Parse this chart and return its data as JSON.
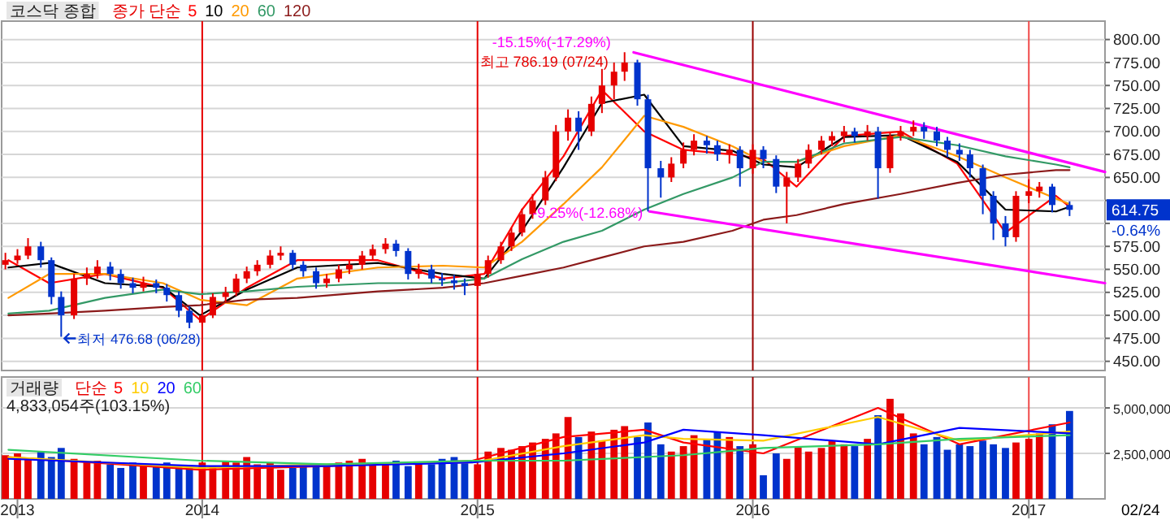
{
  "chart_data": [
    {
      "type": "candlestick",
      "title": "코스닥 종합",
      "legend_title": "종가 단순",
      "legend": "top left",
      "grid": "y",
      "tick_labels": "y",
      "xlim": [
        "2013-04-10",
        "2017-04-12"
      ],
      "ylim": [
        440,
        820
      ],
      "yticks": [
        {
          "value": 450,
          "label": "450.00"
        },
        {
          "value": 475,
          "label": "475.00"
        },
        {
          "value": 500,
          "label": "500.00"
        },
        {
          "value": 525,
          "label": "525.00"
        },
        {
          "value": 550,
          "label": "550.00"
        },
        {
          "value": 575,
          "label": "575.00"
        },
        {
          "value": 600,
          "label": null
        },
        {
          "value": 625,
          "label": null
        },
        {
          "value": 650,
          "label": "650.00"
        },
        {
          "value": 675,
          "label": "675.00"
        },
        {
          "value": 700,
          "label": "700.00"
        },
        {
          "value": 725,
          "label": "725.00"
        },
        {
          "value": 750,
          "label": "750.00"
        },
        {
          "value": 775,
          "label": "775.00"
        },
        {
          "value": 800,
          "label": "800.00"
        }
      ],
      "ref_lines": [
        {
          "axis": "x",
          "value": "2014-01-01",
          "color": "#e60000"
        },
        {
          "axis": "x",
          "value": "2015-01-01",
          "color": "#e60000"
        },
        {
          "axis": "x",
          "value": "2016-01-01",
          "color": "#990000"
        },
        {
          "axis": "x",
          "value": "2017-01-01",
          "color": "#f04848"
        }
      ],
      "annotations": [
        {
          "text": "최고 786.19 (07/24)",
          "x": "2015-07-15",
          "y": 786.19
        },
        {
          "text": "최저 476.68 (06/28)",
          "x": "2013-06-28",
          "y": 476.68
        },
        {
          "text": "-15.15%(-17.29%)",
          "x": "2015-07-27",
          "y": 786
        },
        {
          "text": "-9.25%(-12.68%)",
          "x": "2015-08-17",
          "y": 613
        },
        {
          "text": "614.75",
          "y": 614.75
        },
        "-0.64%"
      ],
      "series": [
        {
          "x": [
            "2013-04-15",
            "2013-05-01",
            "2013-05-15",
            "2013-06-01",
            "2013-06-15",
            "2013-06-28",
            "2013-07-15",
            "2013-08-01",
            "2013-08-15",
            "2013-09-01",
            "2013-09-15",
            "2013-10-01",
            "2013-10-15",
            "2013-11-01",
            "2013-11-15",
            "2013-12-01",
            "2013-12-15",
            "2014-01-01",
            "2014-01-15",
            "2014-02-01",
            "2014-02-15",
            "2014-03-01",
            "2014-03-15",
            "2014-04-01",
            "2014-04-15",
            "2014-05-01",
            "2014-05-15",
            "2014-06-01",
            "2014-06-15",
            "2014-07-01",
            "2014-07-15",
            "2014-08-01",
            "2014-08-15",
            "2014-09-01",
            "2014-09-15",
            "2014-10-01",
            "2014-10-15",
            "2014-11-01",
            "2014-11-15",
            "2014-12-01",
            "2014-12-15",
            "2015-01-01",
            "2015-01-15",
            "2015-02-01",
            "2015-02-15",
            "2015-03-01",
            "2015-03-15",
            "2015-04-01",
            "2015-04-15",
            "2015-05-01",
            "2015-05-15",
            "2015-06-01",
            "2015-06-15",
            "2015-07-01",
            "2015-07-15",
            "2015-08-01",
            "2015-08-15",
            "2015-09-01",
            "2015-09-15",
            "2015-10-01",
            "2015-10-15",
            "2015-11-01",
            "2015-11-15",
            "2015-12-01",
            "2015-12-15",
            "2016-01-01",
            "2016-01-15",
            "2016-02-01",
            "2016-02-15",
            "2016-03-01",
            "2016-03-15",
            "2016-04-01",
            "2016-04-15",
            "2016-05-01",
            "2016-05-15",
            "2016-06-01",
            "2016-06-15",
            "2016-07-01",
            "2016-07-15",
            "2016-08-01",
            "2016-08-15",
            "2016-09-01",
            "2016-09-15",
            "2016-10-01",
            "2016-10-15",
            "2016-11-01",
            "2016-11-15",
            "2016-12-01",
            "2016-12-15",
            "2017-01-01",
            "2017-01-15",
            "2017-02-01",
            "2017-02-24"
          ],
          "ohlc": [
            [
              555,
              568,
              550,
              560
            ],
            [
              560,
              572,
              556,
              565
            ],
            [
              565,
              584,
              561,
              575
            ],
            [
              575,
              580,
              552,
              560
            ],
            [
              560,
              563,
              512,
              520
            ],
            [
              520,
              526,
              476.68,
              500
            ],
            [
              500,
              545,
              496,
              540
            ],
            [
              540,
              552,
              533,
              545
            ],
            [
              545,
              560,
              540,
              553
            ],
            [
              553,
              558,
              538,
              545
            ],
            [
              545,
              550,
              529,
              535
            ],
            [
              535,
              541,
              524,
              530
            ],
            [
              530,
              542,
              526,
              535
            ],
            [
              535,
              539,
              524,
              530
            ],
            [
              530,
              534,
              515,
              522
            ],
            [
              522,
              526,
              498,
              505
            ],
            [
              505,
              510,
              486,
              492
            ],
            [
              492,
              506,
              488,
              500
            ],
            [
              500,
              524,
              497,
              520
            ],
            [
              520,
              531,
              514,
              525
            ],
            [
              525,
              545,
              521,
              540
            ],
            [
              540,
              553,
              535,
              548
            ],
            [
              548,
              560,
              543,
              555
            ],
            [
              555,
              571,
              551,
              565
            ],
            [
              565,
              575,
              560,
              568
            ],
            [
              568,
              571,
              550,
              555
            ],
            [
              555,
              559,
              542,
              548
            ],
            [
              548,
              552,
              529,
              535
            ],
            [
              535,
              545,
              530,
              540
            ],
            [
              540,
              555,
              536,
              550
            ],
            [
              550,
              560,
              545,
              555
            ],
            [
              555,
              570,
              550,
              565
            ],
            [
              565,
              577,
              560,
              572
            ],
            [
              572,
              584,
              567,
              578
            ],
            [
              578,
              582,
              564,
              570
            ],
            [
              570,
              573,
              539,
              545
            ],
            [
              545,
              556,
              540,
              550
            ],
            [
              550,
              555,
              535,
              540
            ],
            [
              540,
              546,
              532,
              538
            ],
            [
              538,
              544,
              528,
              535
            ],
            [
              535,
              540,
              522,
              532
            ],
            [
              532,
              550,
              528,
              545
            ],
            [
              545,
              565,
              541,
              560
            ],
            [
              560,
              580,
              556,
              575
            ],
            [
              575,
              595,
              570,
              590
            ],
            [
              590,
              616,
              586,
              610
            ],
            [
              610,
              632,
              605,
              625
            ],
            [
              625,
              657,
              620,
              650
            ],
            [
              650,
              707,
              646,
              700
            ],
            [
              700,
              724,
              690,
              715
            ],
            [
              715,
              722,
              680,
              700
            ],
            [
              700,
              738,
              695,
              730
            ],
            [
              730,
              768,
              720,
              750
            ],
            [
              750,
              775,
              735,
              765
            ],
            [
              765,
              786.19,
              755,
              775
            ],
            [
              775,
              778,
              728,
              735
            ],
            [
              735,
              740,
              613,
              660
            ],
            [
              660,
              668,
              628,
              650
            ],
            [
              650,
              672,
              645,
              665
            ],
            [
              665,
              688,
              660,
              680
            ],
            [
              680,
              697,
              674,
              690
            ],
            [
              690,
              695,
              676,
              685
            ],
            [
              685,
              690,
              668,
              675
            ],
            [
              675,
              686,
              665,
              680
            ],
            [
              680,
              684,
              640,
              660
            ],
            [
              660,
              686,
              654,
              680
            ],
            [
              680,
              684,
              660,
              670
            ],
            [
              670,
              674,
              633,
              640
            ],
            [
              640,
              656,
              600,
              650
            ],
            [
              650,
              670,
              645,
              665
            ],
            [
              665,
              686,
              660,
              680
            ],
            [
              680,
              695,
              675,
              690
            ],
            [
              690,
              700,
              684,
              695
            ],
            [
              695,
              706,
              688,
              700
            ],
            [
              700,
              704,
              688,
              695
            ],
            [
              695,
              707,
              690,
              700
            ],
            [
              700,
              705,
              627,
              660
            ],
            [
              660,
              699,
              655,
              695
            ],
            [
              695,
              706,
              690,
              700
            ],
            [
              700,
              712,
              695,
              705
            ],
            [
              705,
              710,
              692,
              700
            ],
            [
              700,
              705,
              684,
              690
            ],
            [
              690,
              694,
              672,
              680
            ],
            [
              680,
              687,
              668,
              675
            ],
            [
              675,
              680,
              650,
              660
            ],
            [
              660,
              664,
              610,
              630
            ],
            [
              630,
              635,
              582,
              600
            ],
            [
              600,
              608,
              575,
              585
            ],
            [
              585,
              635,
              580,
              630
            ],
            [
              630,
              648,
              622,
              635
            ],
            [
              635,
              645,
              628,
              640
            ],
            [
              640,
              643,
              612,
              620
            ],
            [
              620,
              624,
              608,
              614.75
            ]
          ],
          "colors": [
            "#e60000",
            "#e60000",
            "#e60000",
            "#0033cc",
            "#0033cc",
            "#0033cc",
            "#e60000",
            "#e60000",
            "#e60000",
            "#0033cc",
            "#0033cc",
            "#0033cc",
            "#e60000",
            "#0033cc",
            "#0033cc",
            "#0033cc",
            "#0033cc",
            "#e60000",
            "#e60000",
            "#e60000",
            "#e60000",
            "#e60000",
            "#e60000",
            "#e60000",
            "#e60000",
            "#0033cc",
            "#0033cc",
            "#0033cc",
            "#e60000",
            "#e60000",
            "#e60000",
            "#e60000",
            "#e60000",
            "#e60000",
            "#0033cc",
            "#0033cc",
            "#e60000",
            "#0033cc",
            "#0033cc",
            "#0033cc",
            "#0033cc",
            "#e60000",
            "#e60000",
            "#e60000",
            "#e60000",
            "#e60000",
            "#e60000",
            "#e60000",
            "#e60000",
            "#e60000",
            "#0033cc",
            "#e60000",
            "#e60000",
            "#e60000",
            "#e60000",
            "#0033cc",
            "#0033cc",
            "#0033cc",
            "#e60000",
            "#e60000",
            "#e60000",
            "#0033cc",
            "#0033cc",
            "#e60000",
            "#0033cc",
            "#e60000",
            "#0033cc",
            "#0033cc",
            "#e60000",
            "#e60000",
            "#e60000",
            "#e60000",
            "#e60000",
            "#e60000",
            "#0033cc",
            "#e60000",
            "#0033cc",
            "#e60000",
            "#e60000",
            "#e60000",
            "#0033cc",
            "#0033cc",
            "#0033cc",
            "#0033cc",
            "#0033cc",
            "#0033cc",
            "#0033cc",
            "#0033cc",
            "#e60000",
            "#e60000",
            "#e60000",
            "#0033cc",
            "#0033cc"
          ]
        },
        {
          "name": "5",
          "type": "line",
          "color": "#ff0000",
          "x": [
            "2013-04-19",
            "2013-06-12",
            "2013-08-25",
            "2013-11-10",
            "2013-12-29",
            "2014-03-01",
            "2014-05-07",
            "2014-08-22",
            "2014-11-16",
            "2015-01-10",
            "2015-03-01",
            "2015-04-25",
            "2015-06-15",
            "2015-08-10",
            "2015-10-01",
            "2015-12-05",
            "2016-01-15",
            "2016-02-28",
            "2016-05-01",
            "2016-07-15",
            "2016-09-28",
            "2016-12-01",
            "2017-02-06",
            "2017-02-24"
          ],
          "values": [
            560,
            535,
            545,
            530,
            495,
            530,
            560,
            560,
            540,
            545,
            615,
            673,
            745,
            700,
            680,
            675,
            670,
            640,
            695,
            700,
            665,
            590,
            630,
            618
          ]
        },
        {
          "name": "10",
          "type": "line",
          "color": "#000000",
          "x": [
            "2013-04-19",
            "2013-06-12",
            "2013-08-25",
            "2013-11-10",
            "2013-12-29",
            "2014-03-01",
            "2014-05-07",
            "2014-08-22",
            "2014-11-16",
            "2015-01-10",
            "2015-03-01",
            "2015-04-25",
            "2015-06-15",
            "2015-08-10",
            "2015-10-01",
            "2015-12-05",
            "2016-01-15",
            "2016-02-28",
            "2016-05-01",
            "2016-07-15",
            "2016-09-28",
            "2016-12-01",
            "2017-02-06",
            "2017-02-24"
          ],
          "values": [
            552,
            557,
            535,
            531,
            500,
            528,
            552,
            557,
            545,
            540,
            592,
            661,
            731,
            740,
            684,
            679,
            664,
            661,
            694,
            696,
            667,
            615,
            613,
            618
          ]
        },
        {
          "name": "20",
          "type": "line",
          "color": "#ff9900",
          "x": [
            "2013-04-19",
            "2013-06-12",
            "2013-08-25",
            "2013-11-10",
            "2013-12-29",
            "2014-03-01",
            "2014-05-07",
            "2014-08-22",
            "2014-11-16",
            "2015-01-10",
            "2015-03-01",
            "2015-04-25",
            "2015-06-15",
            "2015-08-10",
            "2015-10-01",
            "2015-12-05",
            "2016-01-15",
            "2016-02-28",
            "2016-05-01",
            "2016-07-15",
            "2016-09-28",
            "2016-12-01",
            "2017-02-06",
            "2017-02-24"
          ],
          "values": [
            519,
            545,
            545,
            535,
            517,
            511,
            540,
            552,
            554,
            552,
            580,
            621,
            661,
            717,
            705,
            684,
            667,
            667,
            684,
            696,
            673,
            650,
            627,
            621
          ]
        },
        {
          "name": "60",
          "type": "line",
          "color": "#339966",
          "x": [
            "2013-04-19",
            "2013-06-12",
            "2013-08-25",
            "2013-11-10",
            "2013-12-29",
            "2014-03-01",
            "2014-05-07",
            "2014-08-22",
            "2014-11-16",
            "2015-01-10",
            "2015-03-01",
            "2015-04-25",
            "2015-06-15",
            "2015-08-10",
            "2015-10-01",
            "2015-12-05",
            "2016-01-15",
            "2016-02-28",
            "2016-05-01",
            "2016-07-15",
            "2016-09-28",
            "2016-12-01",
            "2017-02-06",
            "2017-02-24"
          ],
          "values": [
            502,
            505,
            519,
            528,
            523,
            526,
            531,
            535,
            535,
            540,
            561,
            580,
            592,
            615,
            632,
            650,
            667,
            667,
            687,
            694,
            685,
            673,
            664,
            661
          ]
        },
        {
          "name": "120",
          "type": "line",
          "color": "#8b1a1a",
          "x": [
            "2013-04-19",
            "2013-06-12",
            "2013-08-25",
            "2013-11-10",
            "2013-12-29",
            "2014-03-01",
            "2014-05-07",
            "2014-08-22",
            "2014-11-16",
            "2015-01-10",
            "2015-03-01",
            "2015-04-25",
            "2015-06-15",
            "2015-08-10",
            "2015-10-01",
            "2015-12-05",
            "2016-01-15",
            "2016-02-28",
            "2016-05-01",
            "2016-07-15",
            "2016-09-28",
            "2016-12-01",
            "2017-02-06",
            "2017-02-24"
          ],
          "values": [
            500,
            502,
            505,
            509,
            511,
            517,
            519,
            526,
            530,
            535,
            543,
            552,
            563,
            575,
            580,
            592,
            604,
            609,
            621,
            632,
            644,
            653,
            658,
            658
          ]
        },
        {
          "type": "line",
          "color": "#ff00ff",
          "x": [
            "2015-07-27",
            "2017-04-12"
          ],
          "values": [
            786,
            656
          ]
        },
        {
          "type": "line",
          "color": "#ff00ff",
          "x": [
            "2015-08-17",
            "2017-04-12"
          ],
          "values": [
            613,
            535
          ]
        }
      ]
    },
    {
      "type": "bar",
      "title": "거래량",
      "legend_title": "단순",
      "subtitle": "4,833,054주(103.15%)",
      "legend": "top left",
      "grid": "y",
      "xlim": [
        "2013-04-10",
        "2017-04-12"
      ],
      "ylim": [
        0,
        6700000
      ],
      "yticks": [
        {
          "value": 2500000,
          "label": "2,500,000"
        },
        {
          "value": 5000000,
          "label": "5,000,000"
        }
      ],
      "xticks": [
        {
          "value": "2013-05-01",
          "label": "2013"
        },
        {
          "value": "2014-01-01",
          "label": "2014"
        },
        {
          "value": "2015-01-01",
          "label": "2015"
        },
        {
          "value": "2016-01-01",
          "label": "2016"
        },
        {
          "value": "2017-01-01",
          "label": "2017"
        }
      ],
      "ref_lines": [
        {
          "axis": "x",
          "value": "2014-01-01",
          "color": "#e60000"
        },
        {
          "axis": "x",
          "value": "2015-01-01",
          "color": "#e60000"
        },
        {
          "axis": "x",
          "value": "2016-01-01",
          "color": "#990000"
        },
        {
          "axis": "x",
          "value": "2017-01-01",
          "color": "#f04848"
        }
      ],
      "annotations": [
        "02/24"
      ],
      "series": [
        {
          "x": [
            "2013-04-15",
            "2013-05-01",
            "2013-05-15",
            "2013-06-01",
            "2013-06-15",
            "2013-06-28",
            "2013-07-15",
            "2013-08-01",
            "2013-08-15",
            "2013-09-01",
            "2013-09-15",
            "2013-10-01",
            "2013-10-15",
            "2013-11-01",
            "2013-11-15",
            "2013-12-01",
            "2013-12-15",
            "2014-01-01",
            "2014-01-15",
            "2014-02-01",
            "2014-02-15",
            "2014-03-01",
            "2014-03-15",
            "2014-04-01",
            "2014-04-15",
            "2014-05-01",
            "2014-05-15",
            "2014-06-01",
            "2014-06-15",
            "2014-07-01",
            "2014-07-15",
            "2014-08-01",
            "2014-08-15",
            "2014-09-01",
            "2014-09-15",
            "2014-10-01",
            "2014-10-15",
            "2014-11-01",
            "2014-11-15",
            "2014-12-01",
            "2014-12-15",
            "2015-01-01",
            "2015-01-15",
            "2015-02-01",
            "2015-02-15",
            "2015-03-01",
            "2015-03-15",
            "2015-04-01",
            "2015-04-15",
            "2015-05-01",
            "2015-05-15",
            "2015-06-01",
            "2015-06-15",
            "2015-07-01",
            "2015-07-15",
            "2015-08-01",
            "2015-08-15",
            "2015-09-01",
            "2015-09-15",
            "2015-10-01",
            "2015-10-15",
            "2015-11-01",
            "2015-11-15",
            "2015-12-01",
            "2015-12-15",
            "2016-01-01",
            "2016-01-15",
            "2016-02-01",
            "2016-02-15",
            "2016-03-01",
            "2016-03-15",
            "2016-04-01",
            "2016-04-15",
            "2016-05-01",
            "2016-05-15",
            "2016-06-01",
            "2016-06-15",
            "2016-07-01",
            "2016-07-15",
            "2016-08-01",
            "2016-08-15",
            "2016-09-01",
            "2016-09-15",
            "2016-10-01",
            "2016-10-15",
            "2016-11-01",
            "2016-11-15",
            "2016-12-01",
            "2016-12-15",
            "2017-01-01",
            "2017-01-15",
            "2017-02-01",
            "2017-02-24"
          ],
          "values": [
            2400000,
            2500000,
            2200000,
            2600000,
            2300000,
            2800000,
            2200000,
            2000000,
            2100000,
            1900000,
            1700000,
            2000000,
            1900000,
            1800000,
            2000000,
            1800000,
            1700000,
            2000000,
            1800000,
            2100000,
            2000000,
            2300000,
            1900000,
            2000000,
            1600000,
            1700000,
            1800000,
            1900000,
            1800000,
            2000000,
            2100000,
            2200000,
            1900000,
            2000000,
            2100000,
            1800000,
            2000000,
            1900000,
            2200000,
            2300000,
            2000000,
            1900000,
            2600000,
            2800000,
            2700000,
            2900000,
            3100000,
            3300000,
            3600000,
            4500000,
            3400000,
            3700000,
            3200000,
            3800000,
            4000000,
            3400000,
            4200000,
            3000000,
            2600000,
            2900000,
            3500000,
            3300000,
            3700000,
            3400000,
            2900000,
            3000000,
            1300000,
            2500000,
            2200000,
            2900000,
            2600000,
            2800000,
            3200000,
            3000000,
            2900000,
            3300000,
            4600000,
            5500000,
            4700000,
            3600000,
            3000000,
            3400000,
            2700000,
            3000000,
            2900000,
            3200000,
            3000000,
            2800000,
            3100000,
            3300000,
            3600000,
            4100000,
            4833054
          ],
          "colors": [
            "#e60000",
            "#e60000",
            "#e60000",
            "#0033cc",
            "#0033cc",
            "#0033cc",
            "#e60000",
            "#e60000",
            "#e60000",
            "#0033cc",
            "#0033cc",
            "#0033cc",
            "#e60000",
            "#0033cc",
            "#0033cc",
            "#0033cc",
            "#0033cc",
            "#e60000",
            "#e60000",
            "#e60000",
            "#e60000",
            "#e60000",
            "#e60000",
            "#e60000",
            "#e60000",
            "#0033cc",
            "#0033cc",
            "#0033cc",
            "#e60000",
            "#e60000",
            "#e60000",
            "#e60000",
            "#e60000",
            "#e60000",
            "#0033cc",
            "#0033cc",
            "#e60000",
            "#0033cc",
            "#0033cc",
            "#0033cc",
            "#0033cc",
            "#e60000",
            "#e60000",
            "#e60000",
            "#e60000",
            "#e60000",
            "#e60000",
            "#e60000",
            "#e60000",
            "#e60000",
            "#0033cc",
            "#e60000",
            "#e60000",
            "#e60000",
            "#e60000",
            "#0033cc",
            "#0033cc",
            "#0033cc",
            "#e60000",
            "#e60000",
            "#e60000",
            "#0033cc",
            "#0033cc",
            "#e60000",
            "#0033cc",
            "#e60000",
            "#0033cc",
            "#0033cc",
            "#e60000",
            "#e60000",
            "#e60000",
            "#e60000",
            "#e60000",
            "#e60000",
            "#0033cc",
            "#e60000",
            "#0033cc",
            "#e60000",
            "#e60000",
            "#e60000",
            "#0033cc",
            "#0033cc",
            "#0033cc",
            "#0033cc",
            "#0033cc",
            "#0033cc",
            "#0033cc",
            "#0033cc",
            "#e60000",
            "#e60000",
            "#e60000",
            "#0033cc",
            "#0033cc"
          ]
        },
        {
          "name": "5",
          "type": "line",
          "color": "#ff0000",
          "x": [
            "2013-04-19",
            "2013-12-29",
            "2014-06-15",
            "2014-12-25",
            "2015-04-25",
            "2015-08-10",
            "2015-10-01",
            "2016-01-15",
            "2016-06-15",
            "2016-10-01",
            "2017-02-24"
          ],
          "values": [
            2300000,
            1600000,
            1800000,
            2100000,
            3400000,
            3800000,
            3100000,
            2500000,
            5000000,
            3000000,
            4200000
          ]
        },
        {
          "name": "10",
          "type": "line",
          "color": "#ffcc00",
          "x": [
            "2013-04-19",
            "2013-12-29",
            "2014-06-15",
            "2014-12-25",
            "2015-04-25",
            "2015-08-10",
            "2015-10-01",
            "2016-01-15",
            "2016-06-15",
            "2016-10-01",
            "2017-02-24"
          ],
          "values": [
            2300000,
            1700000,
            1900000,
            2000000,
            2900000,
            3500000,
            3300000,
            3200000,
            4500000,
            3200000,
            3700000
          ]
        },
        {
          "name": "20",
          "type": "line",
          "color": "#0000ff",
          "x": [
            "2013-04-19",
            "2013-12-29",
            "2014-06-15",
            "2014-12-25",
            "2015-04-25",
            "2015-08-10",
            "2015-10-01",
            "2016-01-15",
            "2016-06-15",
            "2016-10-01",
            "2017-02-24"
          ],
          "values": [
            2200000,
            1800000,
            1800000,
            2000000,
            2500000,
            3100000,
            3800000,
            3500000,
            3000000,
            3900000,
            3600000
          ]
        },
        {
          "name": "60",
          "type": "line",
          "color": "#33cc66",
          "x": [
            "2013-04-19",
            "2013-12-29",
            "2014-06-15",
            "2014-12-25",
            "2015-04-25",
            "2015-08-10",
            "2015-10-01",
            "2016-01-15",
            "2016-06-15",
            "2016-10-01",
            "2017-02-24"
          ],
          "values": [
            2700000,
            2100000,
            1900000,
            2100000,
            2100000,
            2300000,
            2400000,
            2800000,
            3000000,
            3300000,
            3500000
          ]
        }
      ]
    }
  ]
}
